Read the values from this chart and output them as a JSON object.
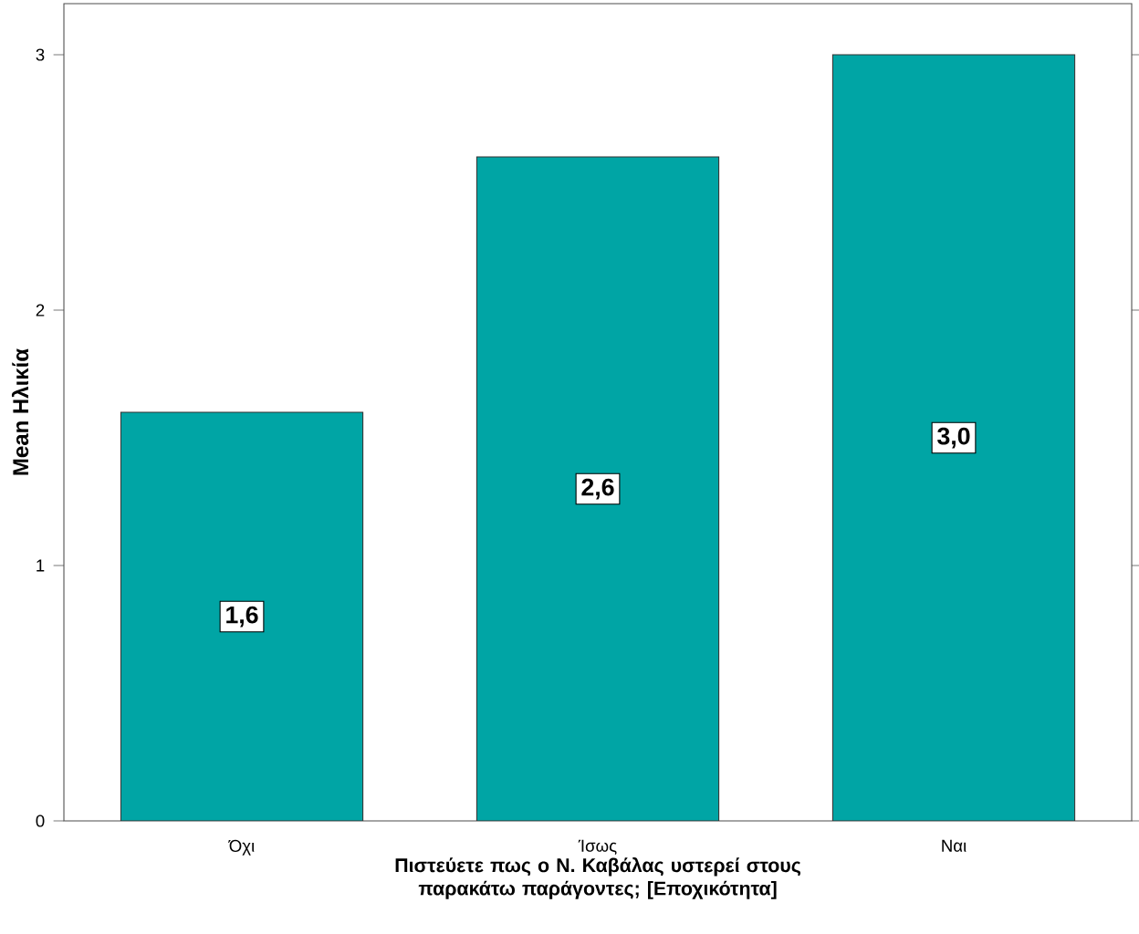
{
  "chart_data": {
    "type": "bar",
    "categories": [
      "Όχι",
      "Ίσως",
      "Ναι"
    ],
    "values": [
      1.6,
      2.6,
      3.0
    ],
    "value_labels": [
      "1,6",
      "2,6",
      "3,0"
    ],
    "color": "#00a5a5",
    "xlabel": "Πιστεύετε πως ο Ν. Καβάλας υστερεί στους παρακάτω παράγοντες; [Εποχικότητα]",
    "ylabel": "Mean Ηλικία",
    "ylim": [
      0,
      3.2
    ],
    "yticks": [
      0,
      1,
      2,
      3
    ]
  }
}
